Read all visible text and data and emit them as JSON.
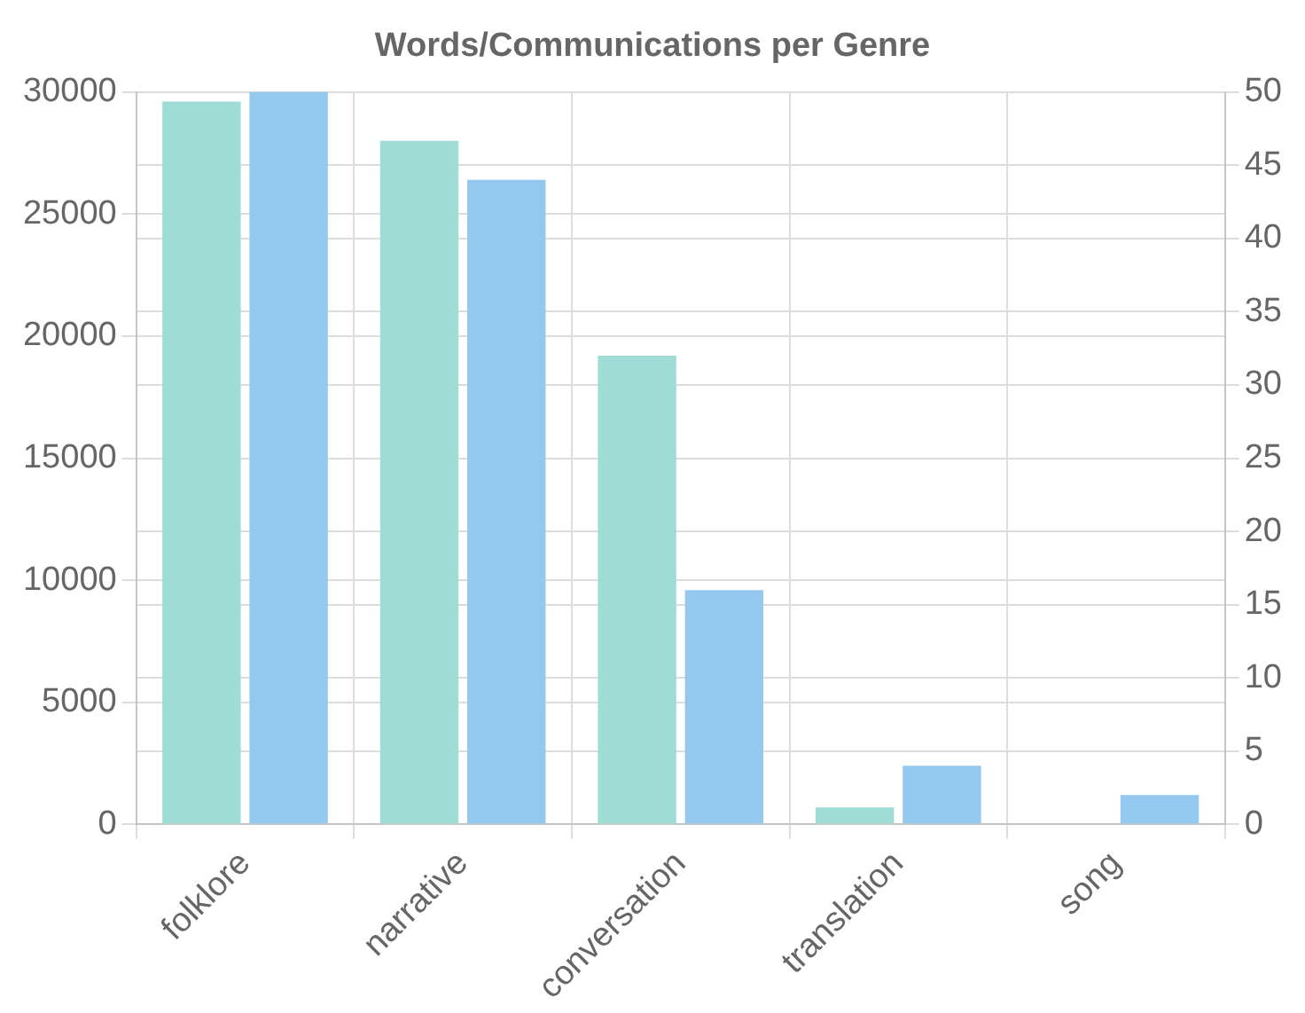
{
  "chart_data": {
    "type": "bar",
    "title": "Words/Communications per Genre",
    "categories": [
      "folklore",
      "narrative",
      "conversation",
      "translation",
      "song"
    ],
    "series": [
      {
        "color": "#9fdcd6",
        "values": [
          29600,
          28000,
          19200,
          700,
          0
        ]
      },
      {
        "color": "#94c8ee",
        "values": [
          50,
          44,
          16,
          4,
          2
        ],
        "axis": "y2"
      }
    ],
    "ylim": [
      0,
      30000
    ],
    "yticks": [
      0,
      5000,
      10000,
      15000,
      20000,
      25000,
      30000
    ],
    "y2lim": [
      0,
      50
    ],
    "y2ticks": [
      0,
      5,
      10,
      15,
      20,
      25,
      30,
      35,
      40,
      45,
      50
    ],
    "grid": true,
    "legend": false
  }
}
